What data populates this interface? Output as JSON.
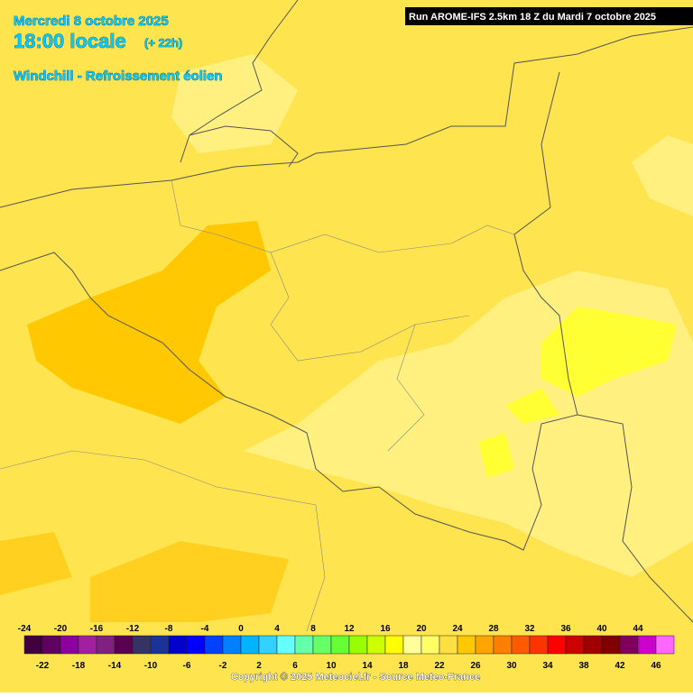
{
  "header": {
    "date": "Mercredi 8 octobre 2025",
    "time": "18:00 locale",
    "lead": "(+ 22h)",
    "parameter": "Windchill - Refroissement éolien",
    "run": "Run AROME-IFS 2.5km 18 Z du Mardi 7 octobre 2025"
  },
  "legend": {
    "items": [
      {
        "value": -24,
        "color": "#400040"
      },
      {
        "value": -22,
        "color": "#600060"
      },
      {
        "value": -20,
        "color": "#8c00a0"
      },
      {
        "value": -18,
        "color": "#a020a0"
      },
      {
        "value": -16,
        "color": "#802080"
      },
      {
        "value": -14,
        "color": "#5a0050"
      },
      {
        "value": -12,
        "color": "#333366"
      },
      {
        "value": -10,
        "color": "#1a3399"
      },
      {
        "value": -8,
        "color": "#0000cc"
      },
      {
        "value": -6,
        "color": "#0000ff"
      },
      {
        "value": -4,
        "color": "#0040ff"
      },
      {
        "value": -2,
        "color": "#0080ff"
      },
      {
        "value": 0,
        "color": "#00b4ff"
      },
      {
        "value": 2,
        "color": "#33d0ff"
      },
      {
        "value": 4,
        "color": "#66ffff"
      },
      {
        "value": 6,
        "color": "#66ffaa"
      },
      {
        "value": 8,
        "color": "#66ff66"
      },
      {
        "value": 10,
        "color": "#66ff33"
      },
      {
        "value": 12,
        "color": "#99ff00"
      },
      {
        "value": 14,
        "color": "#ccff00"
      },
      {
        "value": 16,
        "color": "#ffff00"
      },
      {
        "value": 18,
        "color": "#ffff99"
      },
      {
        "value": 20,
        "color": "#ffff66"
      },
      {
        "value": 22,
        "color": "#ffe040"
      },
      {
        "value": 24,
        "color": "#ffc800"
      },
      {
        "value": 26,
        "color": "#ffa500"
      },
      {
        "value": 28,
        "color": "#ff7f00"
      },
      {
        "value": 30,
        "color": "#ff5a00"
      },
      {
        "value": 32,
        "color": "#ff3300"
      },
      {
        "value": 34,
        "color": "#ff0000"
      },
      {
        "value": 36,
        "color": "#cc0000"
      },
      {
        "value": 38,
        "color": "#a00000"
      },
      {
        "value": 40,
        "color": "#800000"
      },
      {
        "value": 42,
        "color": "#800060"
      },
      {
        "value": 44,
        "color": "#cc00cc"
      },
      {
        "value": 46,
        "color": "#ff66ff"
      }
    ]
  },
  "footer": {
    "copyright": "Copyright © 2025 Meteociel.fr - Source Meteo-France"
  }
}
